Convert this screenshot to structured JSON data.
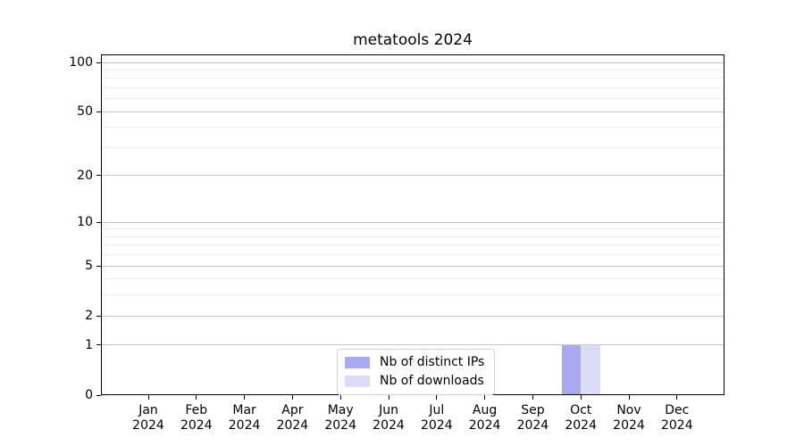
{
  "chart_data": {
    "type": "bar",
    "title": "metatools 2024",
    "x_year": "2024",
    "categories": [
      "Jan",
      "Feb",
      "Mar",
      "Apr",
      "May",
      "Jun",
      "Jul",
      "Aug",
      "Sep",
      "Oct",
      "Nov",
      "Dec"
    ],
    "series": [
      {
        "name": "Nb of distinct IPs",
        "color": "#a9a9f1",
        "values": [
          0,
          0,
          0,
          0,
          0,
          0,
          0,
          0,
          0,
          1,
          0,
          0
        ]
      },
      {
        "name": "Nb of downloads",
        "color": "#dcdcf8",
        "values": [
          0,
          0,
          0,
          0,
          0,
          0,
          0,
          0,
          0,
          1,
          0,
          0
        ]
      }
    ],
    "y_scale": "log1p",
    "ylim": [
      0,
      112
    ],
    "y_ticks": [
      0,
      1,
      2,
      5,
      10,
      20,
      50,
      100
    ],
    "y_minor_gridlines": [
      3,
      4,
      6,
      7,
      8,
      9,
      30,
      40,
      60,
      70,
      80,
      90
    ],
    "grid": "horizontal",
    "legend_position": "lower center",
    "colors": {
      "major_grid": "#c8c8c8",
      "minor_grid": "#ececec",
      "axis": "#000000",
      "background": "#ffffff"
    }
  }
}
